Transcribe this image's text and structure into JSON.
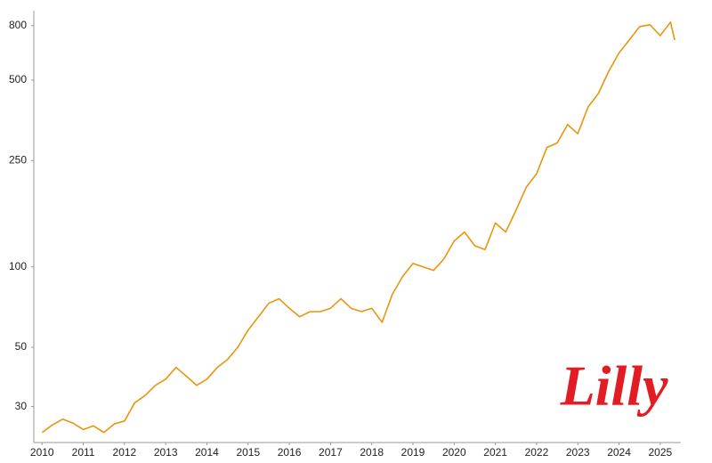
{
  "chart_data": {
    "type": "line",
    "logo": "Lilly",
    "color": "#e8960f",
    "logo_color": "#e31b23",
    "log_scale": true,
    "grid": false,
    "x": [
      2010.0,
      2010.25,
      2010.5,
      2010.75,
      2011.0,
      2011.25,
      2011.5,
      2011.75,
      2012.0,
      2012.25,
      2012.5,
      2012.75,
      2013.0,
      2013.25,
      2013.5,
      2013.75,
      2014.0,
      2014.25,
      2014.5,
      2014.75,
      2015.0,
      2015.25,
      2015.5,
      2015.75,
      2016.0,
      2016.25,
      2016.5,
      2016.75,
      2017.0,
      2017.25,
      2017.5,
      2017.75,
      2018.0,
      2018.25,
      2018.5,
      2018.75,
      2019.0,
      2019.25,
      2019.5,
      2019.75,
      2020.0,
      2020.25,
      2020.5,
      2020.75,
      2021.0,
      2021.25,
      2021.5,
      2021.75,
      2022.0,
      2022.25,
      2022.5,
      2022.75,
      2023.0,
      2023.25,
      2023.5,
      2023.75,
      2024.0,
      2024.25,
      2024.5,
      2024.75,
      2025.0,
      2025.25,
      2025.35
    ],
    "values": [
      24,
      25.6,
      26.9,
      26,
      24.6,
      25.4,
      24,
      25.8,
      26.5,
      31,
      33,
      36,
      38,
      42,
      39,
      36,
      38,
      42,
      45,
      50,
      58,
      65,
      73,
      76,
      70,
      65,
      68,
      68,
      70,
      76,
      70,
      68,
      70,
      62,
      79,
      92,
      103,
      100,
      97,
      107,
      125,
      135,
      120,
      116,
      146,
      135,
      163,
      199,
      223,
      280,
      291,
      341,
      315,
      397,
      446,
      540,
      632,
      707,
      794,
      806,
      734,
      825,
      707
    ],
    "xlim": [
      2009.8,
      2025.5
    ],
    "xticks": [
      2010,
      2011,
      2012,
      2013,
      2014,
      2015,
      2016,
      2017,
      2018,
      2019,
      2020,
      2021,
      2022,
      2023,
      2024,
      2025
    ],
    "ylim": [
      22,
      910
    ],
    "yticks": [
      30,
      50,
      100,
      250,
      500,
      800
    ]
  }
}
